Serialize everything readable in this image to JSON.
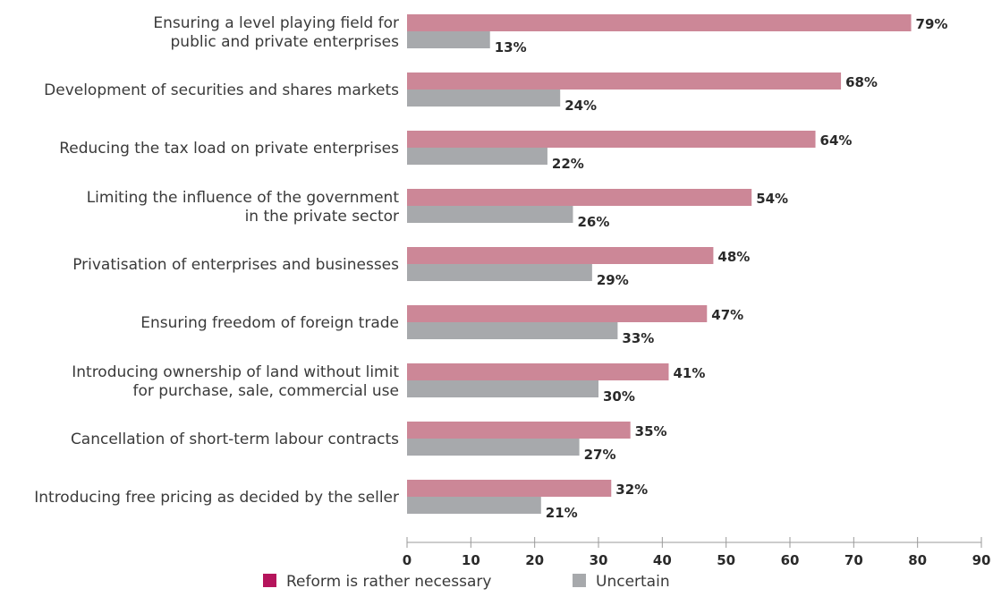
{
  "chart_data": {
    "type": "bar",
    "orientation": "horizontal",
    "categories": [
      [
        "Ensuring a level playing field for",
        "public and private enterprises"
      ],
      [
        "Development of securities and shares markets"
      ],
      [
        "Reducing the tax load on private enterprises"
      ],
      [
        "Limiting the influence of the government",
        "in the private sector"
      ],
      [
        "Privatisation of enterprises and businesses"
      ],
      [
        "Ensuring freedom of foreign trade"
      ],
      [
        "Introducing ownership of land without limit",
        "for purchase, sale, commercial use"
      ],
      [
        "Cancellation of short-term labour contracts"
      ],
      [
        "Introducing free pricing as decided by the seller"
      ]
    ],
    "series": [
      {
        "name": "Reform is rather necessary",
        "color": "#cc8797",
        "legend_color": "#b5145c",
        "values": [
          79,
          68,
          64,
          54,
          48,
          47,
          41,
          35,
          32
        ]
      },
      {
        "name": "Uncertain",
        "color": "#a7a9ac",
        "legend_color": "#a7a9ac",
        "values": [
          13,
          24,
          22,
          26,
          29,
          33,
          30,
          27,
          21
        ]
      }
    ],
    "value_suffix": "%",
    "xlim": [
      0,
      90
    ],
    "xticks": [
      0,
      10,
      20,
      30,
      40,
      50,
      60,
      70,
      80,
      90
    ],
    "grid": false,
    "legend_position": "bottom"
  }
}
